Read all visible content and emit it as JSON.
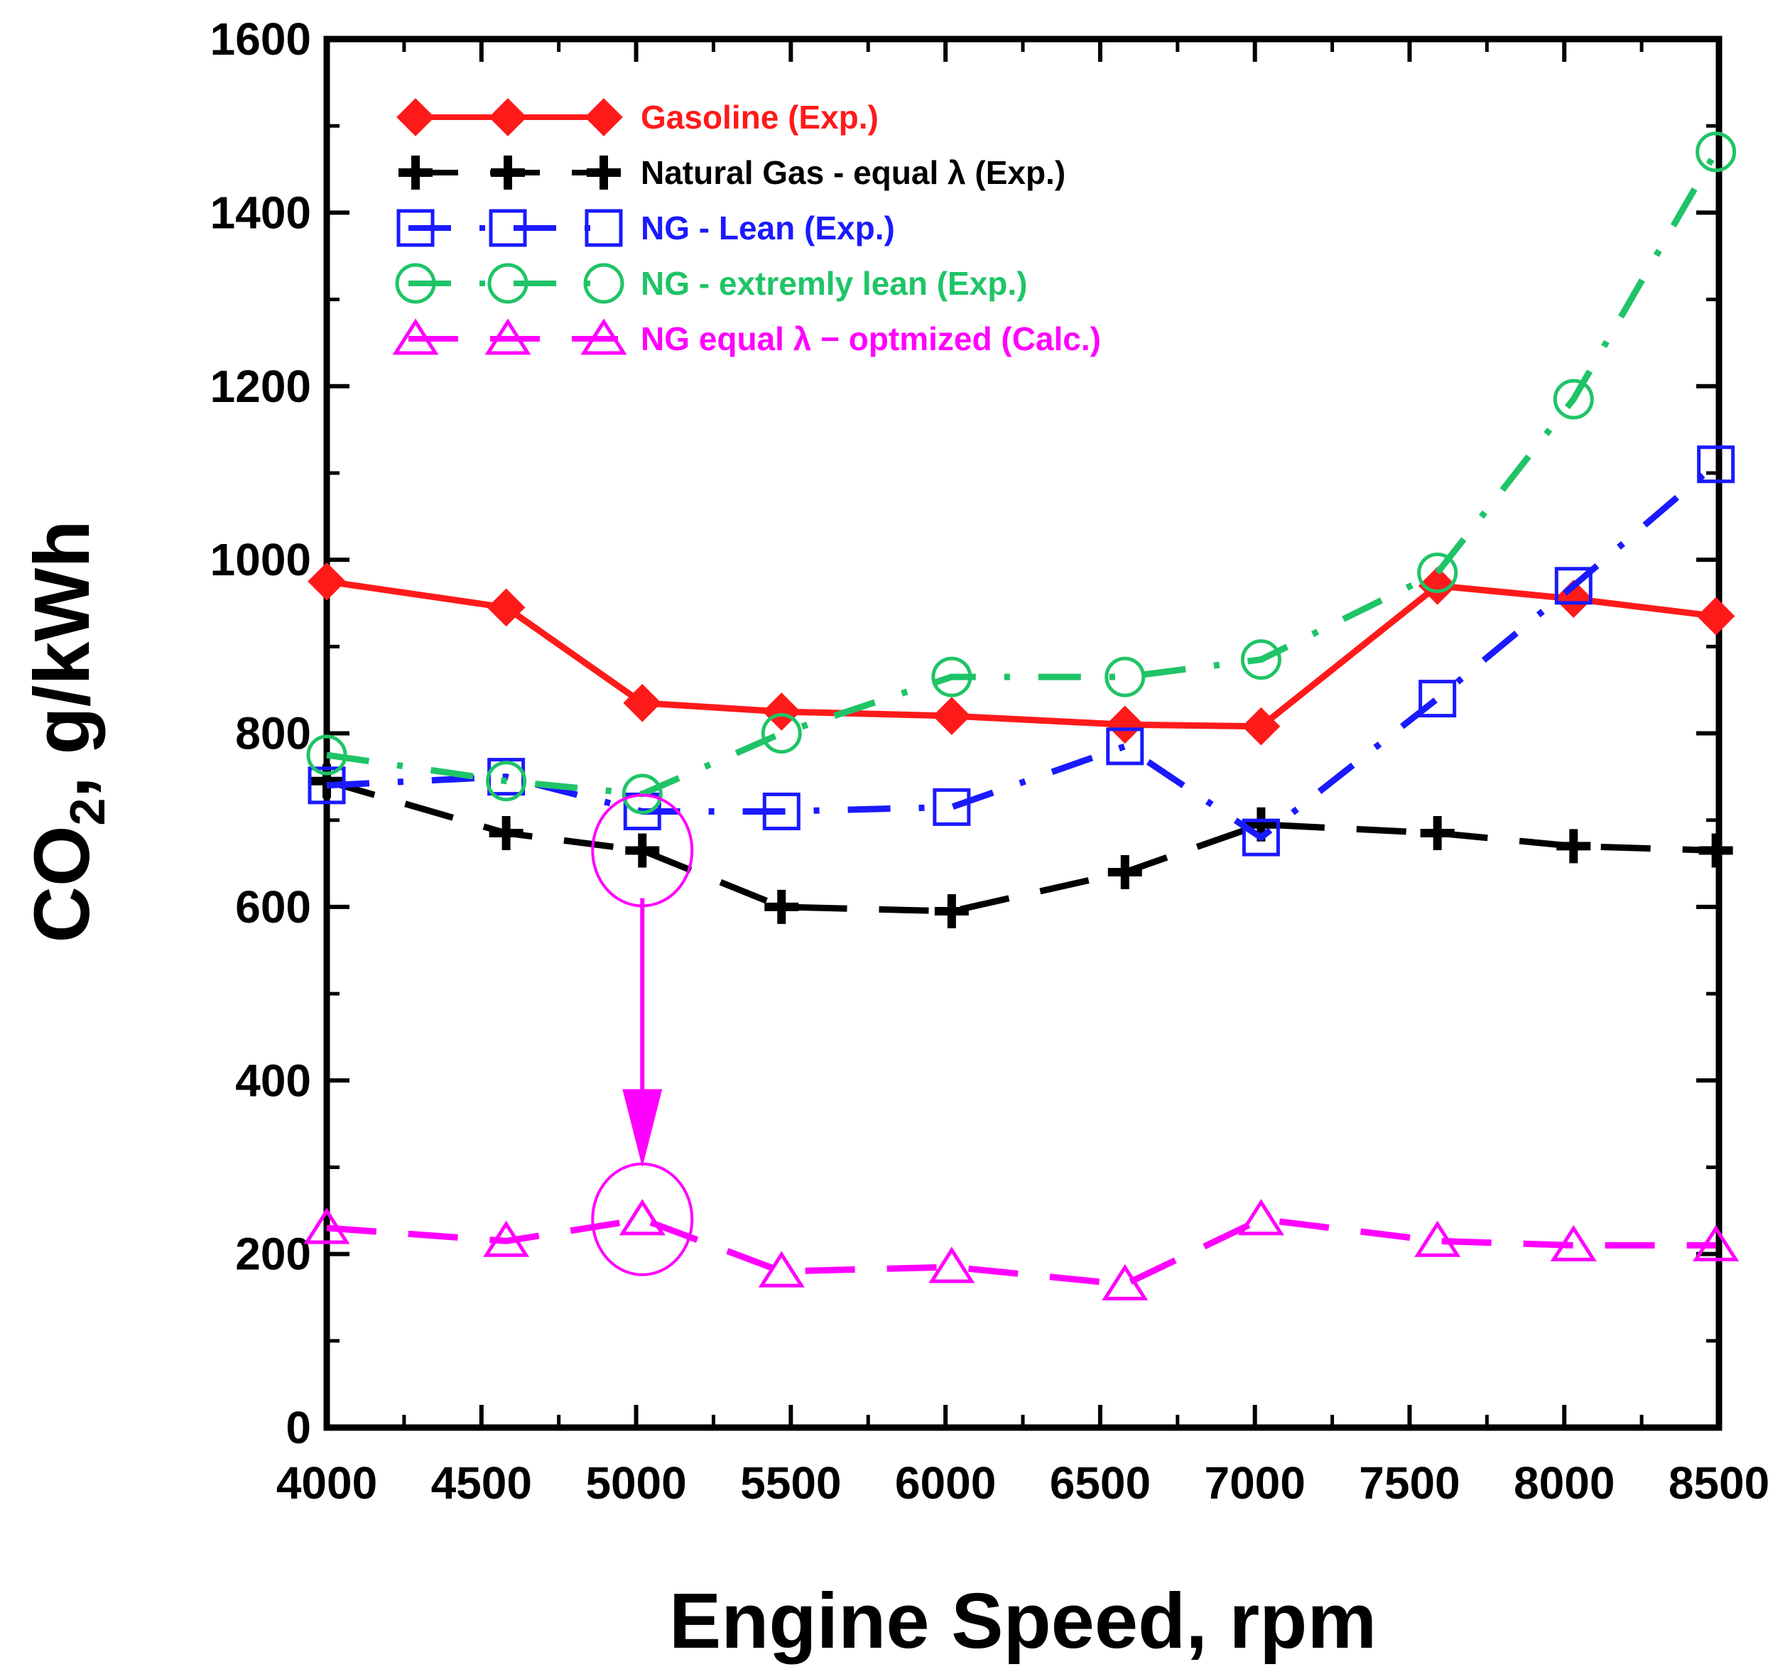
{
  "chart_data": {
    "type": "line",
    "xlabel": "Engine Speed, rpm",
    "ylabel": "CO₂, g/kWh",
    "ylabel_main": "CO",
    "ylabel_sub": "2",
    "ylabel_rest": ", g/kWh",
    "xlim": [
      4000,
      8500
    ],
    "ylim": [
      0,
      1600
    ],
    "x_ticks": [
      4000,
      4500,
      5000,
      5500,
      6000,
      6500,
      7000,
      7500,
      8000,
      8500
    ],
    "y_ticks": [
      0,
      200,
      400,
      600,
      800,
      1000,
      1200,
      1400,
      1600
    ],
    "grid": false,
    "legend_position": "top-left",
    "series": [
      {
        "name": "Gasoline (Exp.)",
        "color": "#ff1a1a",
        "marker": "diamond",
        "dash": "solid",
        "x": [
          4000,
          4580,
          5020,
          5470,
          6020,
          6580,
          7020,
          7590,
          8030,
          8490
        ],
        "y": [
          975,
          945,
          835,
          825,
          820,
          810,
          808,
          970,
          955,
          935
        ]
      },
      {
        "name": "Natural Gas - equal λ (Exp.)",
        "color": "#000000",
        "marker": "plus",
        "dash": "longdash",
        "x": [
          4000,
          4580,
          5020,
          5470,
          6020,
          6580,
          7020,
          7590,
          8030,
          8490
        ],
        "y": [
          745,
          685,
          665,
          600,
          595,
          640,
          695,
          685,
          670,
          665
        ]
      },
      {
        "name": "NG - Lean (Exp.)",
        "color": "#1a1aff",
        "marker": "square",
        "dash": "dashdot",
        "x": [
          4000,
          4580,
          5020,
          5470,
          6020,
          6580,
          7020,
          7590,
          8030,
          8490
        ],
        "y": [
          740,
          750,
          710,
          710,
          715,
          785,
          680,
          840,
          970,
          1110
        ]
      },
      {
        "name": "NG - extremly lean (Exp.)",
        "color": "#1fc467",
        "marker": "circle",
        "dash": "dashdot",
        "x": [
          4000,
          4580,
          5020,
          5470,
          6020,
          6580,
          7020,
          7590,
          8030,
          8490
        ],
        "y": [
          775,
          745,
          730,
          800,
          865,
          865,
          885,
          985,
          1185,
          1470
        ]
      },
      {
        "name": "NG equal λ − optmized (Calc.)",
        "color": "#ff00ff",
        "marker": "triangle",
        "dash": "longdash",
        "x": [
          4000,
          4580,
          5020,
          5470,
          6020,
          6580,
          7020,
          7590,
          8030,
          8490
        ],
        "y": [
          230,
          215,
          240,
          180,
          185,
          165,
          240,
          215,
          210,
          210
        ]
      }
    ],
    "annotations": [
      {
        "type": "ellipse",
        "x": 5020,
        "y": 665,
        "color": "#ff00ff"
      },
      {
        "type": "ellipse",
        "x": 5020,
        "y": 240,
        "color": "#ff00ff"
      },
      {
        "type": "arrow",
        "x": 5020,
        "from_y": 610,
        "to_y": 300,
        "color": "#ff00ff"
      }
    ]
  }
}
